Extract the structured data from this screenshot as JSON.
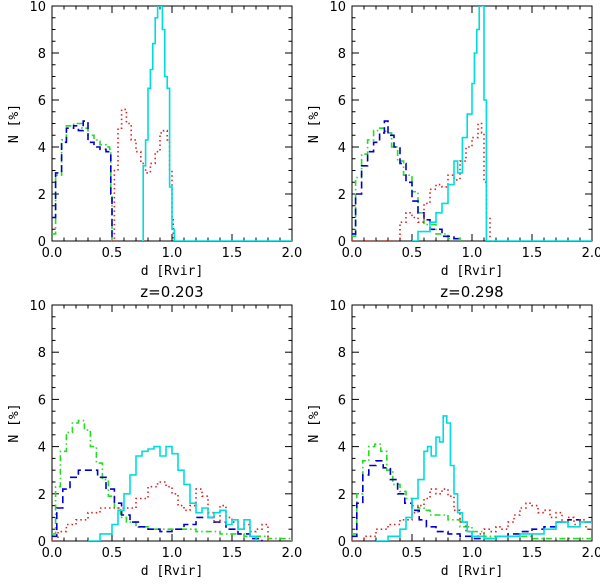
{
  "chart_data": [
    {
      "type": "line",
      "title": "",
      "xlabel": "d [Rvir]",
      "ylabel": "N [%]",
      "xlim": [
        0,
        2
      ],
      "ylim": [
        0,
        10
      ],
      "xticks": [
        "0.0",
        "0.5",
        "1.0",
        "1.5",
        "2.0"
      ],
      "yticks": [
        "0",
        "2",
        "4",
        "6",
        "8",
        "10"
      ],
      "series": [
        {
          "name": "green",
          "color": "#22dd22",
          "dash": "dashdot",
          "x": [
            0.0,
            0.03,
            0.08,
            0.12,
            0.18,
            0.25,
            0.3,
            0.35,
            0.4,
            0.45,
            0.48,
            0.49,
            0.5
          ],
          "y": [
            0.3,
            2.8,
            4.3,
            4.9,
            5.0,
            4.8,
            4.5,
            4.3,
            4.1,
            4.0,
            3.9,
            2.0,
            0.0
          ]
        },
        {
          "name": "blue",
          "color": "#0000cc",
          "dash": "dashed",
          "x": [
            0.0,
            0.03,
            0.08,
            0.12,
            0.18,
            0.22,
            0.26,
            0.3,
            0.35,
            0.4,
            0.45,
            0.48,
            0.49,
            0.5
          ],
          "y": [
            1.0,
            2.9,
            4.2,
            4.8,
            4.9,
            4.7,
            5.1,
            4.2,
            4.0,
            3.9,
            3.8,
            3.8,
            2.0,
            0.0
          ]
        },
        {
          "name": "red",
          "color": "#dd2222",
          "dash": "dotted",
          "x": [
            0.5,
            0.52,
            0.55,
            0.58,
            0.62,
            0.66,
            0.7,
            0.74,
            0.78,
            0.82,
            0.86,
            0.9,
            0.93,
            0.96,
            0.98,
            1.0,
            1.01
          ],
          "y": [
            0.0,
            3.0,
            4.8,
            5.6,
            5.0,
            4.3,
            3.8,
            3.3,
            2.9,
            3.3,
            3.8,
            4.6,
            4.7,
            4.3,
            3.0,
            1.0,
            0.0
          ]
        },
        {
          "name": "cyan",
          "color": "#00dddd",
          "dash": "solid",
          "x": [
            0.75,
            0.76,
            0.78,
            0.8,
            0.82,
            0.84,
            0.86,
            0.88,
            0.9,
            0.92,
            0.94,
            0.96,
            0.98,
            1.0,
            1.02,
            1.2,
            1.5,
            2.0
          ],
          "y": [
            0.0,
            3.2,
            4.3,
            6.5,
            7.3,
            8.4,
            9.5,
            10.2,
            10.0,
            9.0,
            7.0,
            6.5,
            2.3,
            0.5,
            0.0,
            0.0,
            0.0,
            0.0
          ]
        }
      ]
    },
    {
      "type": "line",
      "title": "",
      "xlabel": "d [Rvir]",
      "ylabel": "N [%]",
      "xlim": [
        0,
        2
      ],
      "ylim": [
        0,
        10
      ],
      "xticks": [
        "0.0",
        "0.5",
        "1.0",
        "1.5",
        "2.0"
      ],
      "yticks": [
        "0",
        "2",
        "4",
        "6",
        "8",
        "10"
      ],
      "series": [
        {
          "name": "green",
          "color": "#22dd22",
          "dash": "dashdot",
          "x": [
            0.0,
            0.03,
            0.08,
            0.13,
            0.18,
            0.23,
            0.28,
            0.33,
            0.38,
            0.43,
            0.5,
            0.55,
            0.6,
            0.7,
            0.8,
            0.9
          ],
          "y": [
            0.2,
            2.7,
            3.7,
            4.3,
            4.7,
            4.8,
            4.6,
            4.0,
            3.4,
            2.8,
            2.1,
            1.2,
            0.7,
            0.3,
            0.1,
            0.0
          ]
        },
        {
          "name": "blue",
          "color": "#0000cc",
          "dash": "dashed",
          "x": [
            0.0,
            0.03,
            0.08,
            0.13,
            0.18,
            0.23,
            0.27,
            0.3,
            0.35,
            0.4,
            0.45,
            0.5,
            0.55,
            0.6,
            0.65,
            0.75,
            0.85,
            0.9
          ],
          "y": [
            0.3,
            2.0,
            3.2,
            3.8,
            4.2,
            4.6,
            5.1,
            4.5,
            4.0,
            3.3,
            2.5,
            1.7,
            1.2,
            0.9,
            0.5,
            0.2,
            0.1,
            0.0
          ]
        },
        {
          "name": "red",
          "color": "#dd2222",
          "dash": "dotted",
          "x": [
            0.0,
            0.3,
            0.4,
            0.45,
            0.5,
            0.55,
            0.6,
            0.65,
            0.7,
            0.75,
            0.8,
            0.85,
            0.9,
            0.95,
            1.0,
            1.05,
            1.08,
            1.1,
            1.12,
            1.15
          ],
          "y": [
            0.0,
            0.0,
            0.8,
            1.2,
            1.0,
            0.8,
            1.6,
            2.2,
            2.4,
            2.3,
            2.8,
            2.6,
            3.4,
            4.0,
            4.4,
            5.0,
            4.6,
            2.5,
            1.0,
            0.0
          ]
        },
        {
          "name": "cyan",
          "color": "#00dddd",
          "dash": "solid",
          "x": [
            0.5,
            0.55,
            0.6,
            0.65,
            0.7,
            0.75,
            0.8,
            0.85,
            0.88,
            0.92,
            0.96,
            1.0,
            1.02,
            1.04,
            1.06,
            1.08,
            1.1,
            1.12,
            1.2,
            1.5,
            2.0
          ],
          "y": [
            0.0,
            0.4,
            0.4,
            0.8,
            1.2,
            1.6,
            2.4,
            3.4,
            2.9,
            4.4,
            5.4,
            6.7,
            8.0,
            9.0,
            10.2,
            10.0,
            6.0,
            0.0,
            0.0,
            0.0,
            0.0
          ]
        }
      ]
    },
    {
      "type": "line",
      "title": "z=0.203",
      "xlabel": "d [Rvir]",
      "ylabel": "N [%]",
      "xlim": [
        0,
        2
      ],
      "ylim": [
        0,
        10
      ],
      "xticks": [
        "0.0",
        "0.5",
        "1.0",
        "1.5",
        "2.0"
      ],
      "yticks": [
        "0",
        "2",
        "4",
        "6",
        "8",
        "10"
      ],
      "series": [
        {
          "name": "green",
          "color": "#22dd22",
          "dash": "dashdot",
          "x": [
            0.0,
            0.03,
            0.07,
            0.12,
            0.17,
            0.22,
            0.27,
            0.32,
            0.37,
            0.42,
            0.47,
            0.52,
            0.57,
            0.62,
            0.7,
            0.8,
            0.9,
            1.0,
            1.2,
            1.4,
            1.6,
            1.8,
            2.0
          ],
          "y": [
            0.3,
            2.3,
            3.8,
            4.6,
            5.0,
            5.1,
            4.7,
            4.0,
            3.3,
            2.6,
            1.9,
            1.4,
            1.0,
            0.8,
            0.6,
            0.5,
            0.5,
            0.5,
            0.4,
            0.3,
            0.2,
            0.1,
            0.0
          ]
        },
        {
          "name": "blue",
          "color": "#0000cc",
          "dash": "dashed",
          "x": [
            0.0,
            0.04,
            0.09,
            0.15,
            0.22,
            0.3,
            0.38,
            0.45,
            0.52,
            0.58,
            0.65,
            0.72,
            0.8,
            0.9,
            1.0,
            1.1,
            1.2,
            1.28,
            1.35,
            1.45,
            1.55,
            1.65,
            1.75
          ],
          "y": [
            0.2,
            1.4,
            2.2,
            2.7,
            3.0,
            3.0,
            2.7,
            2.2,
            1.6,
            1.1,
            0.8,
            0.6,
            0.5,
            0.4,
            0.5,
            0.7,
            1.0,
            1.0,
            0.8,
            0.5,
            0.3,
            0.1,
            0.0
          ]
        },
        {
          "name": "red",
          "color": "#dd2222",
          "dash": "dotted",
          "x": [
            0.0,
            0.05,
            0.12,
            0.2,
            0.3,
            0.4,
            0.5,
            0.6,
            0.7,
            0.8,
            0.88,
            0.95,
            1.0,
            1.05,
            1.1,
            1.15,
            1.2,
            1.25,
            1.3,
            1.35,
            1.4,
            1.45,
            1.5,
            1.55,
            1.6,
            1.65,
            1.7,
            1.75,
            1.8
          ],
          "y": [
            0.0,
            0.4,
            0.7,
            0.9,
            1.2,
            1.4,
            1.4,
            1.4,
            1.8,
            2.3,
            2.5,
            2.3,
            2.0,
            1.5,
            1.3,
            1.5,
            2.2,
            1.9,
            1.2,
            0.8,
            1.5,
            1.0,
            0.8,
            0.5,
            0.7,
            0.4,
            0.5,
            0.7,
            0.0
          ]
        },
        {
          "name": "cyan",
          "color": "#00dddd",
          "dash": "solid",
          "x": [
            0.3,
            0.4,
            0.5,
            0.55,
            0.6,
            0.65,
            0.7,
            0.75,
            0.8,
            0.85,
            0.9,
            0.95,
            1.0,
            1.05,
            1.1,
            1.15,
            1.2,
            1.25,
            1.3,
            1.35,
            1.4,
            1.45,
            1.5,
            1.55,
            1.6,
            1.65,
            1.7
          ],
          "y": [
            0.0,
            0.3,
            0.7,
            1.3,
            2.0,
            2.8,
            3.6,
            3.8,
            3.9,
            4.0,
            3.6,
            4.0,
            3.7,
            3.0,
            2.4,
            1.6,
            1.2,
            1.4,
            1.0,
            1.2,
            1.3,
            0.7,
            0.9,
            0.5,
            0.9,
            0.2,
            0.0
          ]
        }
      ]
    },
    {
      "type": "line",
      "title": "z=0.298",
      "xlabel": "d [Rvir]",
      "ylabel": "N [%]",
      "xlim": [
        0,
        2
      ],
      "ylim": [
        0,
        10
      ],
      "xticks": [
        "0.0",
        "0.5",
        "1.0",
        "1.5",
        "2.0"
      ],
      "yticks": [
        "0",
        "2",
        "4",
        "6",
        "8",
        "10"
      ],
      "series": [
        {
          "name": "green",
          "color": "#22dd22",
          "dash": "dashdot",
          "x": [
            0.0,
            0.04,
            0.09,
            0.14,
            0.19,
            0.24,
            0.29,
            0.34,
            0.4,
            0.45,
            0.5,
            0.55,
            0.6,
            0.65,
            0.7,
            0.8,
            0.9,
            1.0,
            1.1,
            1.3,
            1.5,
            1.7,
            1.9,
            2.0
          ],
          "y": [
            0.3,
            2.0,
            3.4,
            4.0,
            4.1,
            3.8,
            3.0,
            2.4,
            2.1,
            1.8,
            1.5,
            1.4,
            1.3,
            1.1,
            1.1,
            0.9,
            0.6,
            0.4,
            0.2,
            0.2,
            0.1,
            0.1,
            0.1,
            0.0
          ]
        },
        {
          "name": "blue",
          "color": "#0000cc",
          "dash": "dashed",
          "x": [
            0.0,
            0.04,
            0.09,
            0.14,
            0.2,
            0.26,
            0.32,
            0.38,
            0.44,
            0.5,
            0.56,
            0.62,
            0.7,
            0.8,
            0.9,
            1.0,
            1.1,
            1.2,
            1.3,
            1.4,
            1.5,
            1.6,
            1.7,
            1.8,
            1.9,
            2.0
          ],
          "y": [
            0.2,
            1.6,
            2.8,
            3.2,
            3.4,
            3.1,
            2.6,
            2.0,
            1.6,
            1.3,
            0.9,
            0.6,
            0.4,
            0.3,
            0.2,
            0.1,
            0.1,
            0.2,
            0.3,
            0.4,
            0.5,
            0.6,
            0.8,
            0.9,
            0.8,
            0.7
          ]
        },
        {
          "name": "red",
          "color": "#dd2222",
          "dash": "dotted",
          "x": [
            0.0,
            0.1,
            0.2,
            0.3,
            0.4,
            0.5,
            0.55,
            0.6,
            0.65,
            0.7,
            0.75,
            0.8,
            0.85,
            0.9,
            0.95,
            1.0,
            1.05,
            1.1,
            1.15,
            1.2,
            1.25,
            1.3,
            1.35,
            1.4,
            1.45,
            1.5,
            1.55,
            1.6,
            1.65,
            1.7,
            1.75,
            1.8,
            1.85,
            1.9,
            1.95,
            2.0
          ],
          "y": [
            0.0,
            0.2,
            0.5,
            0.7,
            0.9,
            1.2,
            1.5,
            1.8,
            2.2,
            2.0,
            2.2,
            1.9,
            1.3,
            0.8,
            0.4,
            0.2,
            0.3,
            0.5,
            0.4,
            0.6,
            0.5,
            0.8,
            1.1,
            1.4,
            1.6,
            1.5,
            1.2,
            1.3,
            1.0,
            1.2,
            0.8,
            1.0,
            0.7,
            0.9,
            0.5,
            0.4
          ]
        },
        {
          "name": "cyan",
          "color": "#00dddd",
          "dash": "solid",
          "x": [
            0.2,
            0.3,
            0.4,
            0.45,
            0.5,
            0.55,
            0.6,
            0.63,
            0.66,
            0.7,
            0.73,
            0.76,
            0.79,
            0.82,
            0.85,
            0.88,
            0.92,
            0.96,
            1.0,
            1.1,
            1.2,
            1.3,
            1.4,
            1.5,
            1.6,
            1.7,
            1.8,
            1.9,
            2.0
          ],
          "y": [
            0.0,
            0.2,
            0.5,
            1.0,
            1.8,
            2.6,
            3.8,
            4.0,
            3.6,
            4.4,
            4.2,
            5.3,
            5.0,
            3.2,
            2.0,
            1.2,
            0.8,
            0.4,
            0.2,
            0.1,
            0.2,
            0.2,
            0.3,
            0.3,
            0.5,
            0.8,
            0.6,
            0.8,
            0.5
          ]
        }
      ]
    }
  ]
}
